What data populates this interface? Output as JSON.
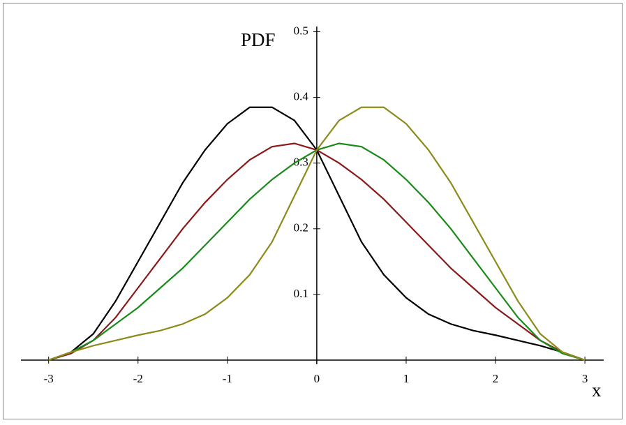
{
  "chart_data": {
    "type": "line",
    "y_label": "PDF",
    "x_label": "x",
    "x": [
      -3,
      -2.75,
      -2.5,
      -2.25,
      -2,
      -1.75,
      -1.5,
      -1.25,
      -1,
      -0.75,
      -0.5,
      -0.25,
      0,
      0.25,
      0.5,
      0.75,
      1,
      1.25,
      1.5,
      1.75,
      2,
      2.25,
      2.5,
      2.75,
      3
    ],
    "series": [
      {
        "color": "#000000",
        "values": [
          0,
          0.012,
          0.04,
          0.09,
          0.15,
          0.21,
          0.27,
          0.32,
          0.36,
          0.385,
          0.385,
          0.365,
          0.32,
          0.25,
          0.18,
          0.13,
          0.095,
          0.07,
          0.055,
          0.045,
          0.038,
          0.03,
          0.022,
          0.012,
          0
        ]
      },
      {
        "color": "#8b1a1a",
        "values": [
          0,
          0.01,
          0.03,
          0.065,
          0.11,
          0.155,
          0.2,
          0.24,
          0.275,
          0.305,
          0.325,
          0.33,
          0.32,
          0.3,
          0.275,
          0.245,
          0.21,
          0.175,
          0.14,
          0.11,
          0.08,
          0.055,
          0.03,
          0.012,
          0
        ]
      },
      {
        "color": "#1a8a1a",
        "values": [
          0,
          0.012,
          0.03,
          0.055,
          0.08,
          0.11,
          0.14,
          0.175,
          0.21,
          0.245,
          0.275,
          0.3,
          0.32,
          0.33,
          0.325,
          0.305,
          0.275,
          0.24,
          0.2,
          0.155,
          0.11,
          0.065,
          0.03,
          0.01,
          0
        ]
      },
      {
        "color": "#8b8b1a",
        "values": [
          0,
          0.012,
          0.022,
          0.03,
          0.038,
          0.045,
          0.055,
          0.07,
          0.095,
          0.13,
          0.18,
          0.25,
          0.32,
          0.365,
          0.385,
          0.385,
          0.36,
          0.32,
          0.27,
          0.21,
          0.15,
          0.09,
          0.04,
          0.012,
          0
        ]
      }
    ],
    "xlim": [
      -3.31,
      3.21
    ],
    "ylim": [
      0,
      0.508
    ],
    "xticks": [
      -3,
      -2,
      -1,
      0,
      1,
      2,
      3
    ],
    "yticks": [
      0.1,
      0.2,
      0.3,
      0.4,
      0.5
    ]
  }
}
